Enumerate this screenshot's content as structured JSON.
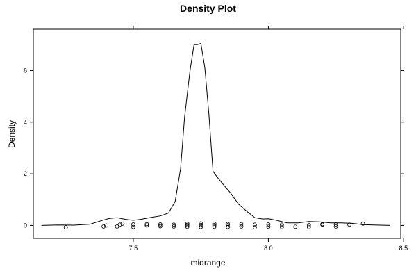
{
  "chart_data": {
    "type": "line",
    "title": "Density Plot",
    "xlabel": "midrange",
    "ylabel": "Density",
    "xlim": [
      7.13,
      8.49
    ],
    "ylim": [
      -0.5,
      7.6
    ],
    "x_ticks": [
      7.5,
      8.0,
      8.5
    ],
    "x_tick_labels": [
      "7.5",
      "8.0",
      "8.5"
    ],
    "y_ticks": [
      0,
      2,
      4,
      6
    ],
    "y_tick_labels": [
      "0",
      "2",
      "4",
      "6"
    ],
    "grid": false,
    "legend": "none",
    "series": [
      {
        "kind": "density-line",
        "x": [
          7.16,
          7.22,
          7.28,
          7.34,
          7.38,
          7.41,
          7.44,
          7.47,
          7.5,
          7.53,
          7.56,
          7.6,
          7.63,
          7.655,
          7.675,
          7.69,
          7.71,
          7.725,
          7.737,
          7.75,
          7.765,
          7.78,
          7.795,
          7.81,
          7.84,
          7.86,
          7.89,
          7.92,
          7.95,
          7.98,
          8.0,
          8.03,
          8.07,
          8.11,
          8.15,
          8.19,
          8.23,
          8.27,
          8.31,
          8.35,
          8.39,
          8.45
        ],
        "y": [
          0.0,
          0.02,
          0.01,
          0.05,
          0.18,
          0.27,
          0.3,
          0.24,
          0.2,
          0.24,
          0.3,
          0.37,
          0.48,
          0.93,
          2.2,
          4.2,
          6.0,
          7.0,
          7.0,
          7.05,
          6.1,
          4.3,
          2.1,
          1.88,
          1.5,
          1.26,
          0.82,
          0.55,
          0.3,
          0.25,
          0.26,
          0.2,
          0.1,
          0.1,
          0.15,
          0.14,
          0.1,
          0.1,
          0.08,
          0.03,
          0.02,
          0.0
        ]
      },
      {
        "kind": "points",
        "x": [
          7.25,
          7.39,
          7.4,
          7.44,
          7.45,
          7.46,
          7.5,
          7.5,
          7.55,
          7.55,
          7.6,
          7.6,
          7.65,
          7.65,
          7.7,
          7.7,
          7.7,
          7.75,
          7.75,
          7.75,
          7.8,
          7.8,
          7.8,
          7.85,
          7.85,
          7.85,
          7.9,
          7.9,
          7.95,
          7.95,
          8.0,
          8.0,
          8.05,
          8.05,
          8.1,
          8.15,
          8.15,
          8.2,
          8.2,
          8.25,
          8.25,
          8.3,
          8.35
        ],
        "y": [
          -0.07,
          -0.04,
          0.0,
          -0.04,
          0.03,
          0.07,
          -0.06,
          0.04,
          0.0,
          0.05,
          -0.03,
          0.04,
          -0.04,
          0.03,
          -0.05,
          0.02,
          0.07,
          -0.06,
          0.02,
          0.08,
          -0.05,
          0.01,
          0.07,
          -0.06,
          0.01,
          0.06,
          -0.04,
          0.05,
          -0.07,
          0.03,
          -0.05,
          0.04,
          -0.06,
          0.03,
          -0.05,
          -0.06,
          0.02,
          0.03,
          0.05,
          -0.04,
          0.04,
          0.03,
          0.07
        ]
      }
    ]
  }
}
